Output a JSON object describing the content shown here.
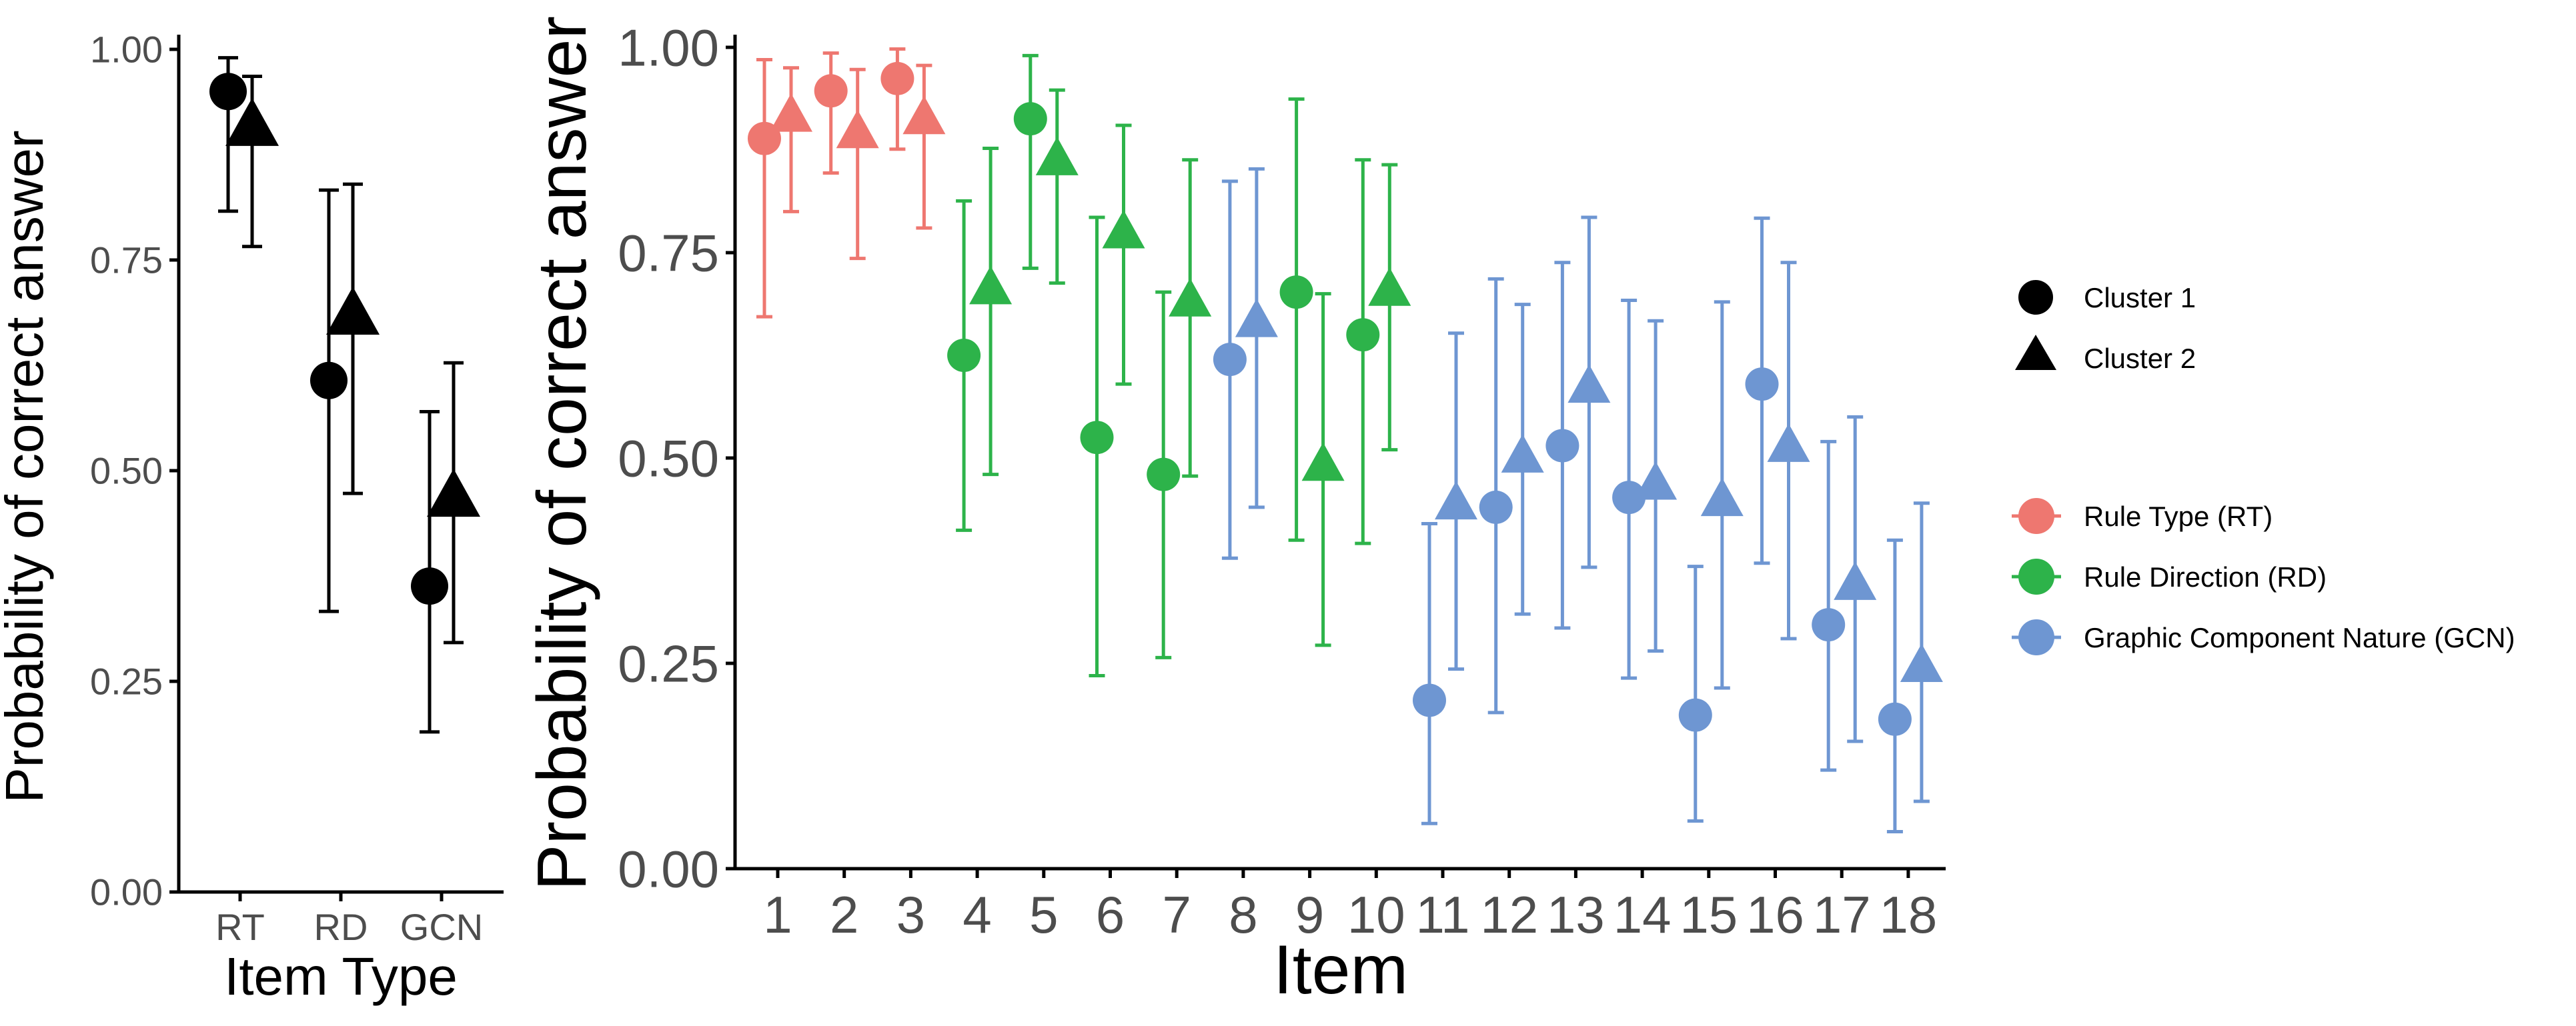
{
  "colors": {
    "RT": "#EE7770",
    "RD": "#2DB34A",
    "GCN": "#6E96D2",
    "black": "#000000",
    "tick_text": "#4D4D4D"
  },
  "chart_data": [
    {
      "type": "scatter",
      "title": "",
      "xlabel": "Item Type",
      "ylabel": "Probability of correct answer",
      "ylim": [
        0,
        1
      ],
      "yticks": [
        "0.00",
        "0.25",
        "0.50",
        "0.75",
        "1.00"
      ],
      "categories": [
        "RT",
        "RD",
        "GCN"
      ],
      "error_bars": true,
      "grid": false,
      "series": [
        {
          "name": "Cluster 1",
          "marker": "circle",
          "values": [
            0.95,
            0.607,
            0.363
          ],
          "lower": [
            0.808,
            0.333,
            0.19
          ],
          "upper": [
            0.99,
            0.833,
            0.57
          ]
        },
        {
          "name": "Cluster 2",
          "marker": "triangle",
          "values": [
            0.907,
            0.683,
            0.467
          ],
          "lower": [
            0.766,
            0.473,
            0.296
          ],
          "upper": [
            0.968,
            0.84,
            0.628
          ]
        }
      ]
    },
    {
      "type": "scatter",
      "title": "",
      "xlabel": "Item",
      "ylabel": "Probability of correct answer",
      "ylim": [
        0,
        1
      ],
      "yticks": [
        "0.00",
        "0.25",
        "0.50",
        "0.75",
        "1.00"
      ],
      "categories": [
        "1",
        "2",
        "3",
        "4",
        "5",
        "6",
        "7",
        "8",
        "9",
        "10",
        "11",
        "12",
        "13",
        "14",
        "15",
        "16",
        "17",
        "18"
      ],
      "item_type": [
        "RT",
        "RT",
        "RT",
        "RD",
        "RD",
        "RD",
        "RD",
        "GCN",
        "RD",
        "RD",
        "GCN",
        "GCN",
        "GCN",
        "GCN",
        "GCN",
        "GCN",
        "GCN",
        "GCN"
      ],
      "error_bars": true,
      "grid": false,
      "series": [
        {
          "name": "Cluster 1",
          "marker": "circle",
          "values": [
            0.889,
            0.947,
            0.962,
            0.625,
            0.913,
            0.525,
            0.48,
            0.62,
            0.702,
            0.65,
            0.205,
            0.44,
            0.515,
            0.452,
            0.187,
            0.59,
            0.297,
            0.182
          ],
          "lower": [
            0.672,
            0.847,
            0.876,
            0.412,
            0.731,
            0.235,
            0.257,
            0.378,
            0.4,
            0.396,
            0.055,
            0.19,
            0.293,
            0.232,
            0.058,
            0.372,
            0.12,
            0.045
          ],
          "upper": [
            0.985,
            0.993,
            0.998,
            0.813,
            0.99,
            0.793,
            0.702,
            0.837,
            0.937,
            0.863,
            0.42,
            0.718,
            0.738,
            0.692,
            0.368,
            0.792,
            0.52,
            0.4
          ]
        },
        {
          "name": "Cluster 2",
          "marker": "triangle",
          "values": [
            0.915,
            0.895,
            0.912,
            0.705,
            0.862,
            0.773,
            0.69,
            0.665,
            0.49,
            0.703,
            0.443,
            0.5,
            0.585,
            0.467,
            0.447,
            0.513,
            0.345,
            0.245
          ],
          "lower": [
            0.8,
            0.743,
            0.78,
            0.48,
            0.713,
            0.59,
            0.478,
            0.44,
            0.272,
            0.51,
            0.243,
            0.31,
            0.367,
            0.265,
            0.22,
            0.28,
            0.155,
            0.082
          ],
          "upper": [
            0.975,
            0.973,
            0.978,
            0.877,
            0.948,
            0.905,
            0.863,
            0.852,
            0.7,
            0.857,
            0.652,
            0.687,
            0.793,
            0.667,
            0.69,
            0.738,
            0.55,
            0.445
          ]
        }
      ]
    }
  ],
  "legend": {
    "shape_title": "",
    "shapes": [
      {
        "label": "Cluster 1",
        "marker": "circle"
      },
      {
        "label": "Cluster 2",
        "marker": "triangle"
      }
    ],
    "color_title": "",
    "colors": [
      {
        "label": "Rule Type (RT)",
        "key": "RT"
      },
      {
        "label": "Rule Direction (RD)",
        "key": "RD"
      },
      {
        "label": "Graphic Component Nature (GCN)",
        "key": "GCN"
      }
    ]
  }
}
